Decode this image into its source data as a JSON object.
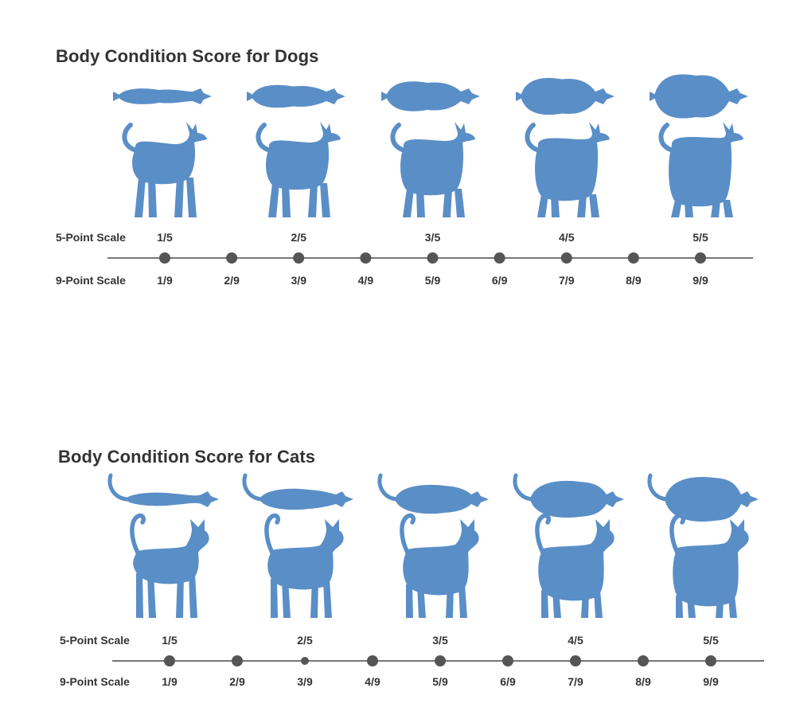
{
  "colors": {
    "silhouette": "#5a8ec7",
    "line": "#777777",
    "dot": "#555555"
  },
  "sections": [
    {
      "id": "dogs",
      "title": "Body Condition Score for Dogs",
      "animal_icon": "dog-icon",
      "top_view_icon": "dog-top-view-icon",
      "five_point_label": "5-Point Scale",
      "nine_point_label": "9-Point Scale",
      "five_point_ticks": [
        "1/5",
        "2/5",
        "3/5",
        "4/5",
        "5/5"
      ],
      "nine_point_ticks": [
        "1/9",
        "2/9",
        "3/9",
        "4/9",
        "5/9",
        "6/9",
        "7/9",
        "8/9",
        "9/9"
      ]
    },
    {
      "id": "cats",
      "title": "Body Condition Score for Cats",
      "animal_icon": "cat-icon",
      "top_view_icon": "cat-top-view-icon",
      "five_point_label": "5-Point Scale",
      "nine_point_label": "9-Point Scale",
      "five_point_ticks": [
        "1/5",
        "2/5",
        "3/5",
        "4/5",
        "5/5"
      ],
      "nine_point_ticks": [
        "1/9",
        "2/9",
        "3/9",
        "4/9",
        "5/9",
        "6/9",
        "7/9",
        "8/9",
        "9/9"
      ]
    }
  ]
}
